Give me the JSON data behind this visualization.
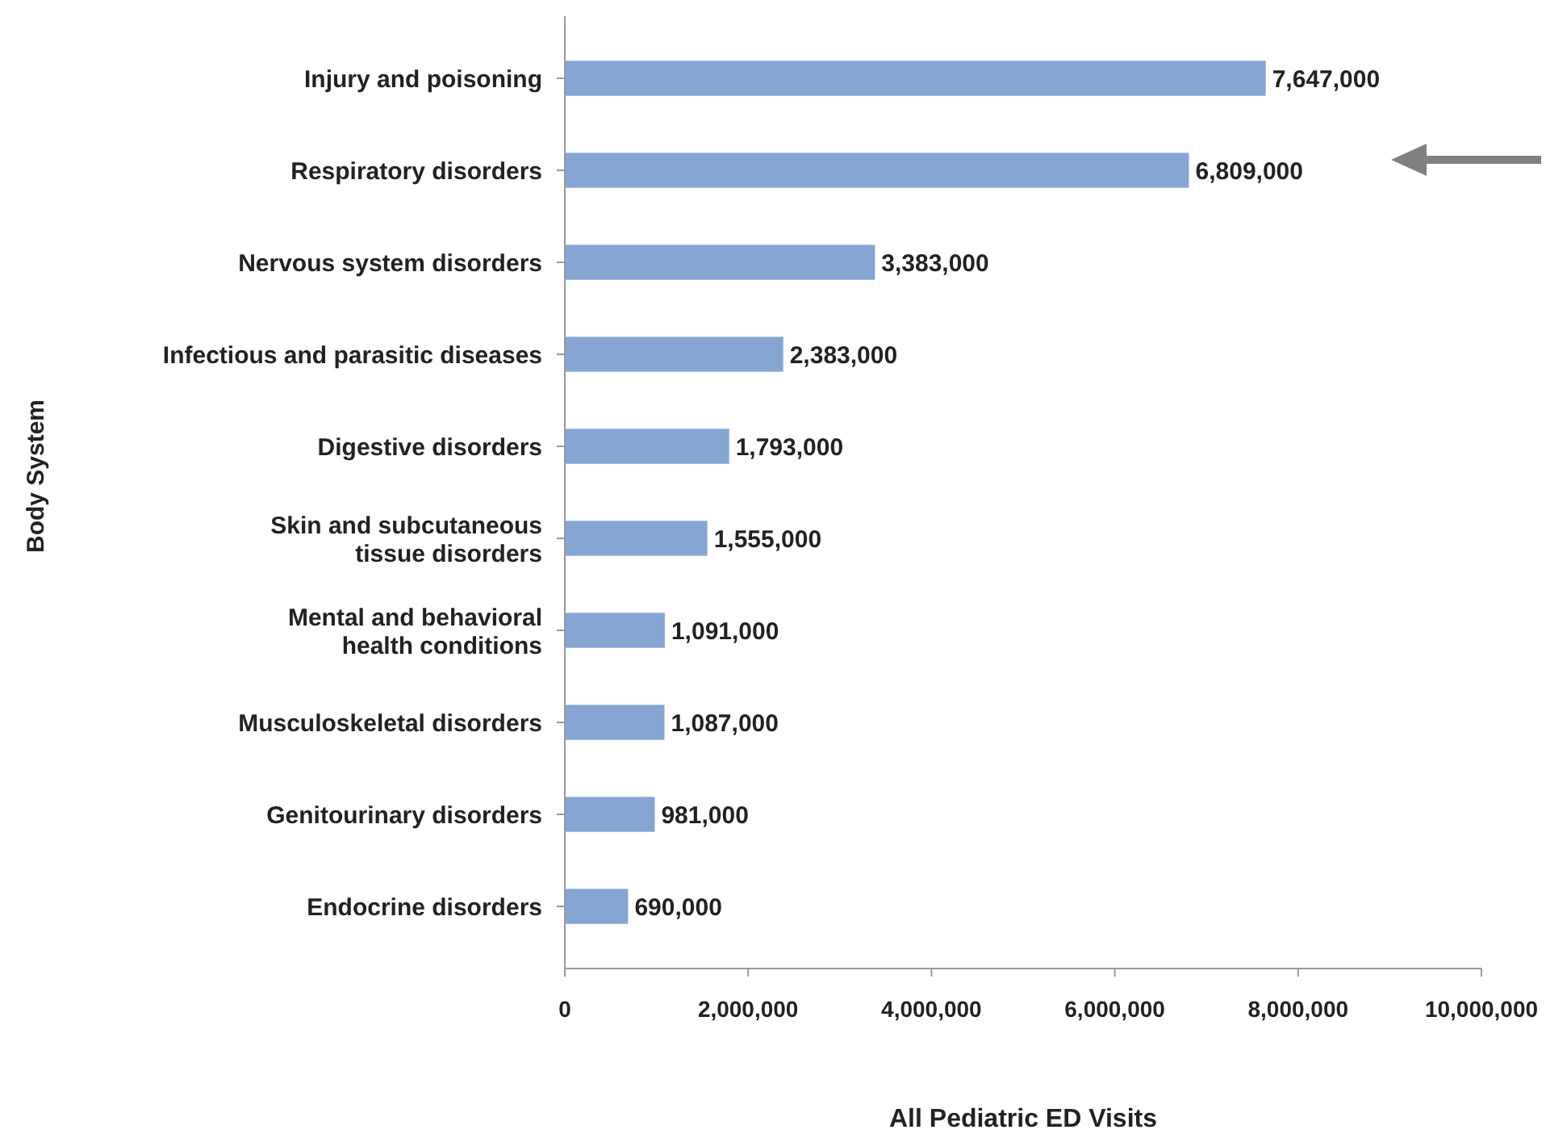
{
  "chart_data": {
    "type": "bar",
    "orientation": "horizontal",
    "xlabel": "All Pediatric ED Visits",
    "ylabel": "Body System",
    "categories": [
      "Injury and poisoning",
      "Respiratory disorders",
      "Nervous system disorders",
      "Infectious and parasitic diseases",
      "Digestive disorders",
      "Skin and subcutaneous tissue disorders",
      "Mental and behavioral health conditions",
      "Musculoskeletal disorders",
      "Genitourinary disorders",
      "Endocrine disorders"
    ],
    "values": [
      7647000,
      6809000,
      3383000,
      2383000,
      1793000,
      1555000,
      1091000,
      1087000,
      981000,
      690000
    ],
    "value_labels": [
      "7,647,000",
      "6,809,000",
      "3,383,000",
      "2,383,000",
      "1,793,000",
      "1,555,000",
      "1,091,000",
      "1,087,000",
      "981,000",
      "690,000"
    ],
    "color": "#85a5d3",
    "grid": false,
    "xlim": [
      0,
      10000000
    ],
    "xticks": [
      0,
      {
        "value": 2000000,
        "label": "2,000,000"
      },
      {
        "value": 4000000,
        "label": "4,000,000"
      },
      {
        "value": 6000000,
        "label": "6,000,000"
      },
      {
        "value": 8000000,
        "label": "8,000,000"
      },
      {
        "value": 10000000,
        "label": "10,000,000"
      }
    ]
  }
}
